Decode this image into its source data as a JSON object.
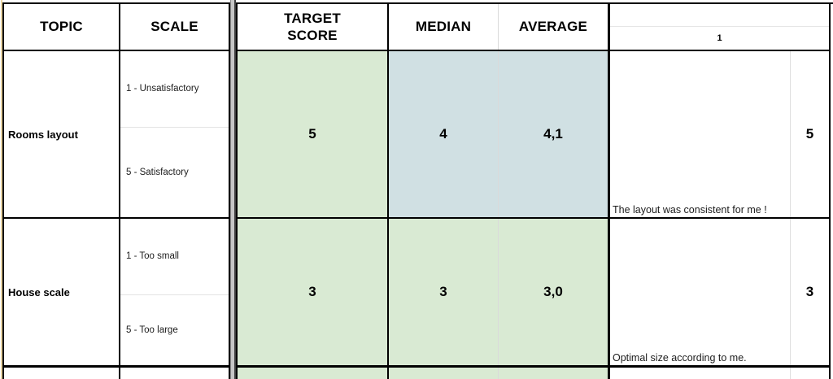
{
  "header": {
    "topic": "TOPIC",
    "scale": "SCALE",
    "target_score": "TARGET SCORE",
    "median": "MEDIAN",
    "average": "AVERAGE",
    "respondent": "1"
  },
  "rows": [
    {
      "topic": "Rooms layout",
      "scale_low": "1 - Unsatisfactory",
      "scale_high": "5 - Satisfactory",
      "target_score": "5",
      "median": "4",
      "average": "4,1",
      "comment": "The layout was consistent for me !",
      "respondent_score": "5",
      "target_bg": "#d9ead3",
      "median_bg": "#d0e0e3",
      "average_bg": "#d0e0e3"
    },
    {
      "topic": "House scale",
      "scale_low": "1 - Too small",
      "scale_high": "5 - Too large",
      "target_score": "3",
      "median": "3",
      "average": "3,0",
      "comment": "Optimal size according to me.",
      "respondent_score": "3",
      "target_bg": "#d9ead3",
      "median_bg": "#d9ead3",
      "average_bg": "#d9ead3"
    }
  ],
  "partial_row": {
    "target_bg": "#d9ead3",
    "median_bg": "#d9ead3",
    "average_bg": "#d9ead3"
  },
  "colors": {
    "green_cell": "#d9ead3",
    "blue_cell": "#d0e0e3",
    "tan_strip": "#ead6a4",
    "border_black": "#000000",
    "pane_divider_gray": "#c6c6c6"
  }
}
